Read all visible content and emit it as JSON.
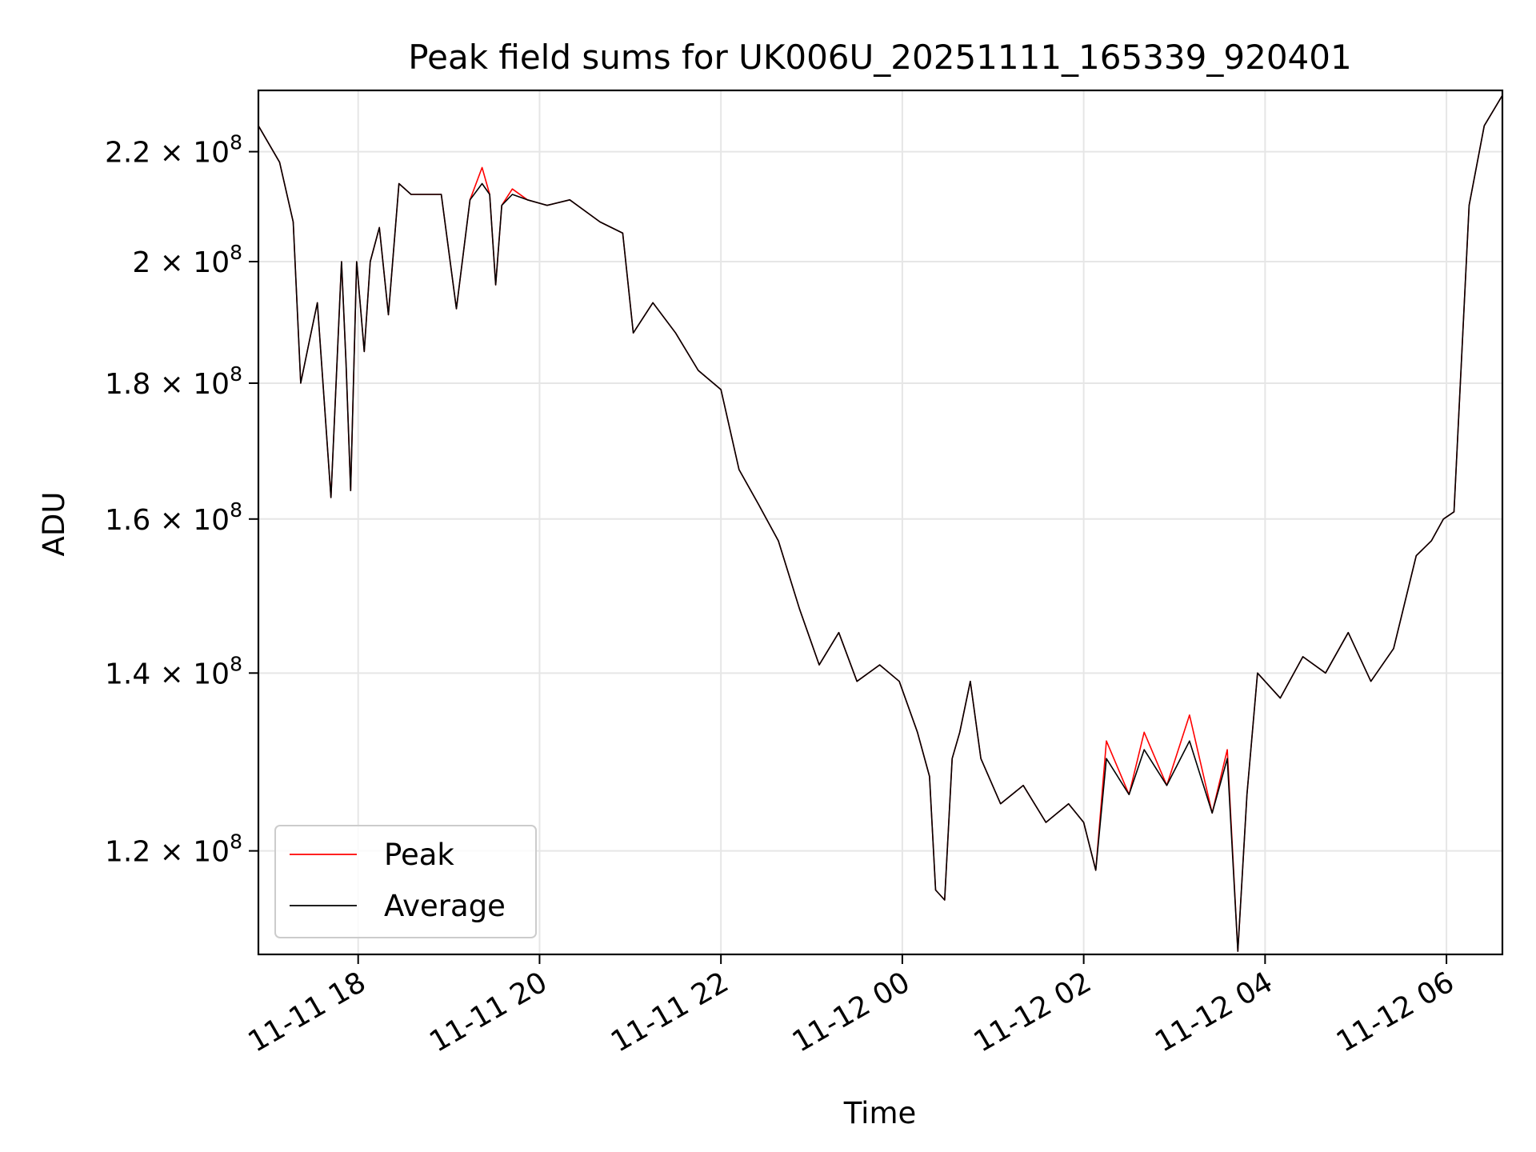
{
  "chart_data": {
    "type": "line",
    "title": "Peak field sums for UK006U_20251111_165339_920401",
    "xlabel": "Time",
    "ylabel": "ADU",
    "y_scale": "log",
    "xlim": [
      "2025-11-11 16:54",
      "2025-11-12 06:37"
    ],
    "ylim": [
      109700000.0,
      232000000.0
    ],
    "grid": true,
    "legend_position": "lower-left",
    "x_ticks": [
      {
        "t": "2025-11-11 18:00",
        "label": "11-11 18"
      },
      {
        "t": "2025-11-11 20:00",
        "label": "11-11 20"
      },
      {
        "t": "2025-11-11 22:00",
        "label": "11-11 22"
      },
      {
        "t": "2025-11-12 00:00",
        "label": "11-12 00"
      },
      {
        "t": "2025-11-12 02:00",
        "label": "11-12 02"
      },
      {
        "t": "2025-11-12 04:00",
        "label": "11-12 04"
      },
      {
        "t": "2025-11-12 06:00",
        "label": "11-12 06"
      }
    ],
    "y_ticks": [
      {
        "v": 120000000.0,
        "mantissa": "1.2",
        "exp": "8"
      },
      {
        "v": 140000000.0,
        "mantissa": "1.4",
        "exp": "8"
      },
      {
        "v": 160000000.0,
        "mantissa": "1.6",
        "exp": "8"
      },
      {
        "v": 180000000.0,
        "mantissa": "1.8",
        "exp": "8"
      },
      {
        "v": 200000000.0,
        "mantissa": "2",
        "exp": "8"
      },
      {
        "v": 220000000.0,
        "mantissa": "2.2",
        "exp": "8"
      }
    ],
    "series": [
      {
        "name": "Peak",
        "color": "#ff0000",
        "x": [
          "2025-11-11 16:54",
          "2025-11-11 17:08",
          "2025-11-11 17:17",
          "2025-11-11 17:22",
          "2025-11-11 17:28",
          "2025-11-11 17:33",
          "2025-11-11 17:42",
          "2025-11-11 17:49",
          "2025-11-11 17:52",
          "2025-11-11 17:55",
          "2025-11-11 17:59",
          "2025-11-11 18:04",
          "2025-11-11 18:08",
          "2025-11-11 18:14",
          "2025-11-11 18:20",
          "2025-11-11 18:27",
          "2025-11-11 18:35",
          "2025-11-11 18:45",
          "2025-11-11 18:55",
          "2025-11-11 19:05",
          "2025-11-11 19:14",
          "2025-11-11 19:22",
          "2025-11-11 19:27",
          "2025-11-11 19:31",
          "2025-11-11 19:35",
          "2025-11-11 19:42",
          "2025-11-11 19:52",
          "2025-11-11 20:05",
          "2025-11-11 20:20",
          "2025-11-11 20:40",
          "2025-11-11 20:55",
          "2025-11-11 21:02",
          "2025-11-11 21:15",
          "2025-11-11 21:30",
          "2025-11-11 21:45",
          "2025-11-11 22:00",
          "2025-11-11 22:12",
          "2025-11-11 22:25",
          "2025-11-11 22:38",
          "2025-11-11 22:52",
          "2025-11-11 23:05",
          "2025-11-11 23:18",
          "2025-11-11 23:30",
          "2025-11-11 23:45",
          "2025-11-11 23:58",
          "2025-11-12 00:10",
          "2025-11-12 00:18",
          "2025-11-12 00:22",
          "2025-11-12 00:28",
          "2025-11-12 00:33",
          "2025-11-12 00:38",
          "2025-11-12 00:45",
          "2025-11-12 00:52",
          "2025-11-12 01:05",
          "2025-11-12 01:20",
          "2025-11-12 01:35",
          "2025-11-12 01:50",
          "2025-11-12 02:00",
          "2025-11-12 02:08",
          "2025-11-12 02:15",
          "2025-11-12 02:30",
          "2025-11-12 02:40",
          "2025-11-12 02:55",
          "2025-11-12 03:10",
          "2025-11-12 03:25",
          "2025-11-12 03:35",
          "2025-11-12 03:42",
          "2025-11-12 03:48",
          "2025-11-12 03:55",
          "2025-11-12 04:10",
          "2025-11-12 04:25",
          "2025-11-12 04:40",
          "2025-11-12 04:55",
          "2025-11-12 05:10",
          "2025-11-12 05:25",
          "2025-11-12 05:40",
          "2025-11-12 05:50",
          "2025-11-12 05:58",
          "2025-11-12 06:05",
          "2025-11-12 06:15",
          "2025-11-12 06:25",
          "2025-11-12 06:37"
        ],
        "y": [
          225000000.0,
          218000000.0,
          207000000.0,
          180000000.0,
          187000000.0,
          193000000.0,
          163000000.0,
          200000000.0,
          183000000.0,
          164000000.0,
          200000000.0,
          185000000.0,
          200000000.0,
          206000000.0,
          191000000.0,
          214000000.0,
          212000000.0,
          212000000.0,
          212000000.0,
          192000000.0,
          211000000.0,
          217000000.0,
          212000000.0,
          196000000.0,
          210000000.0,
          213000000.0,
          211000000.0,
          210000000.0,
          211000000.0,
          207000000.0,
          205000000.0,
          188000000.0,
          193000000.0,
          188000000.0,
          182000000.0,
          179000000.0,
          167000000.0,
          162000000.0,
          157000000.0,
          148000000.0,
          141000000.0,
          145000000.0,
          139000000.0,
          141000000.0,
          139000000.0,
          133000000.0,
          128000000.0,
          116000000.0,
          115000000.0,
          130000000.0,
          133000000.0,
          139000000.0,
          130000000.0,
          125000000.0,
          127000000.0,
          123000000.0,
          125000000.0,
          123000000.0,
          118000000.0,
          132000000.0,
          126000000.0,
          133000000.0,
          127000000.0,
          135000000.0,
          124000000.0,
          131000000.0,
          110000000.0,
          126000000.0,
          140000000.0,
          137000000.0,
          142000000.0,
          140000000.0,
          145000000.0,
          139000000.0,
          143000000.0,
          155000000.0,
          157000000.0,
          160000000.0,
          161000000.0,
          210000000.0,
          225000000.0,
          231000000.0
        ]
      },
      {
        "name": "Average",
        "color": "#000000",
        "x": [
          "2025-11-11 16:54",
          "2025-11-11 17:08",
          "2025-11-11 17:17",
          "2025-11-11 17:22",
          "2025-11-11 17:28",
          "2025-11-11 17:33",
          "2025-11-11 17:42",
          "2025-11-11 17:49",
          "2025-11-11 17:52",
          "2025-11-11 17:55",
          "2025-11-11 17:59",
          "2025-11-11 18:04",
          "2025-11-11 18:08",
          "2025-11-11 18:14",
          "2025-11-11 18:20",
          "2025-11-11 18:27",
          "2025-11-11 18:35",
          "2025-11-11 18:45",
          "2025-11-11 18:55",
          "2025-11-11 19:05",
          "2025-11-11 19:14",
          "2025-11-11 19:22",
          "2025-11-11 19:27",
          "2025-11-11 19:31",
          "2025-11-11 19:35",
          "2025-11-11 19:42",
          "2025-11-11 19:52",
          "2025-11-11 20:05",
          "2025-11-11 20:20",
          "2025-11-11 20:40",
          "2025-11-11 20:55",
          "2025-11-11 21:02",
          "2025-11-11 21:15",
          "2025-11-11 21:30",
          "2025-11-11 21:45",
          "2025-11-11 22:00",
          "2025-11-11 22:12",
          "2025-11-11 22:25",
          "2025-11-11 22:38",
          "2025-11-11 22:52",
          "2025-11-11 23:05",
          "2025-11-11 23:18",
          "2025-11-11 23:30",
          "2025-11-11 23:45",
          "2025-11-11 23:58",
          "2025-11-12 00:10",
          "2025-11-12 00:18",
          "2025-11-12 00:22",
          "2025-11-12 00:28",
          "2025-11-12 00:33",
          "2025-11-12 00:38",
          "2025-11-12 00:45",
          "2025-11-12 00:52",
          "2025-11-12 01:05",
          "2025-11-12 01:20",
          "2025-11-12 01:35",
          "2025-11-12 01:50",
          "2025-11-12 02:00",
          "2025-11-12 02:08",
          "2025-11-12 02:15",
          "2025-11-12 02:30",
          "2025-11-12 02:40",
          "2025-11-12 02:55",
          "2025-11-12 03:10",
          "2025-11-12 03:25",
          "2025-11-12 03:35",
          "2025-11-12 03:42",
          "2025-11-12 03:48",
          "2025-11-12 03:55",
          "2025-11-12 04:10",
          "2025-11-12 04:25",
          "2025-11-12 04:40",
          "2025-11-12 04:55",
          "2025-11-12 05:10",
          "2025-11-12 05:25",
          "2025-11-12 05:40",
          "2025-11-12 05:50",
          "2025-11-12 05:58",
          "2025-11-12 06:05",
          "2025-11-12 06:15",
          "2025-11-12 06:25",
          "2025-11-12 06:37"
        ],
        "y": [
          225000000.0,
          218000000.0,
          207000000.0,
          180000000.0,
          187000000.0,
          193000000.0,
          163000000.0,
          200000000.0,
          183000000.0,
          164000000.0,
          200000000.0,
          185000000.0,
          200000000.0,
          206000000.0,
          191000000.0,
          214000000.0,
          212000000.0,
          212000000.0,
          212000000.0,
          192000000.0,
          211000000.0,
          214000000.0,
          212000000.0,
          196000000.0,
          210000000.0,
          212000000.0,
          211000000.0,
          210000000.0,
          211000000.0,
          207000000.0,
          205000000.0,
          188000000.0,
          193000000.0,
          188000000.0,
          182000000.0,
          179000000.0,
          167000000.0,
          162000000.0,
          157000000.0,
          148000000.0,
          141000000.0,
          145000000.0,
          139000000.0,
          141000000.0,
          139000000.0,
          133000000.0,
          128000000.0,
          116000000.0,
          115000000.0,
          130000000.0,
          133000000.0,
          139000000.0,
          130000000.0,
          125000000.0,
          127000000.0,
          123000000.0,
          125000000.0,
          123000000.0,
          118000000.0,
          130000000.0,
          126000000.0,
          131000000.0,
          127000000.0,
          132000000.0,
          124000000.0,
          130000000.0,
          110000000.0,
          126000000.0,
          140000000.0,
          137000000.0,
          142000000.0,
          140000000.0,
          145000000.0,
          139000000.0,
          143000000.0,
          155000000.0,
          157000000.0,
          160000000.0,
          161000000.0,
          210000000.0,
          225000000.0,
          231000000.0
        ]
      }
    ]
  }
}
